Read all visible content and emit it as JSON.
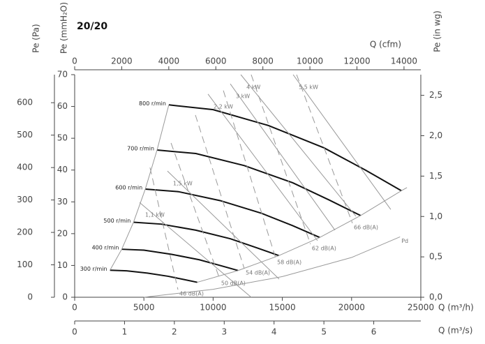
{
  "chart_data": {
    "type": "line",
    "title": "20/20",
    "x_label": "Q (m³/h)",
    "y_label": "Pe (mmH₂O)",
    "xlim": [
      0,
      25000
    ],
    "xticks": [
      0,
      5000,
      10000,
      15000,
      20000,
      25000
    ],
    "ylim": [
      0,
      70
    ],
    "yticks": [
      0,
      10,
      20,
      30,
      40,
      50,
      60,
      70
    ],
    "x2_label": "Q (cfm)",
    "x2lim": [
      0,
      14714
    ],
    "x2ticks": [
      0,
      2000,
      4000,
      6000,
      8000,
      10000,
      12000,
      14000
    ],
    "x3_label": "Q (m³/s)",
    "x3lim": [
      0,
      6.944
    ],
    "x3ticks": [
      0,
      1,
      2,
      3,
      4,
      5,
      6
    ],
    "y2_label": "Pe (Pa)",
    "y2lim": [
      0,
      686.5
    ],
    "y2ticks": [
      0,
      100,
      200,
      300,
      400,
      500,
      600
    ],
    "y3_label": "Pe (in wg)",
    "y3lim": [
      0,
      2.756
    ],
    "y3ticks": [
      {
        "value": 0,
        "label": "0,0"
      },
      {
        "value": 0.5,
        "label": "0,5"
      },
      {
        "value": 1,
        "label": "1,0"
      },
      {
        "value": 1.5,
        "label": "1,5"
      },
      {
        "value": 2,
        "label": "2,0"
      },
      {
        "value": 2.5,
        "label": "2,5"
      }
    ],
    "series": [
      {
        "name": "800 r/min",
        "style": "speed",
        "color": "#111111",
        "x": [
          6800,
          10000,
          14000,
          18000,
          21000,
          23600
        ],
        "values": [
          60.5,
          59,
          54,
          47,
          40,
          33.5
        ]
      },
      {
        "name": "700 r/min",
        "style": "speed",
        "color": "#111111",
        "x": [
          5950,
          8750,
          12250,
          15750,
          18375,
          20650
        ],
        "values": [
          46.3,
          45.2,
          41.4,
          36,
          30.6,
          25.7
        ]
      },
      {
        "name": "600 r/min",
        "style": "speed",
        "color": "#111111",
        "x": [
          5100,
          7500,
          10500,
          13500,
          15750,
          17700
        ],
        "values": [
          34,
          33.2,
          30.4,
          26.4,
          22.5,
          18.8
        ]
      },
      {
        "name": "500 r/min",
        "style": "speed",
        "color": "#111111",
        "x": [
          4250,
          6250,
          8750,
          11250,
          13125,
          14750
        ],
        "values": [
          23.6,
          23,
          21.1,
          18.4,
          15.6,
          13.1
        ]
      },
      {
        "name": "400 r/min",
        "style": "speed",
        "color": "#111111",
        "x": [
          3400,
          5000,
          7000,
          9000,
          10500,
          11800
        ],
        "values": [
          15.1,
          14.8,
          13.5,
          11.8,
          10,
          8.4
        ]
      },
      {
        "name": "300 r/min",
        "style": "speed",
        "color": "#111111",
        "x": [
          2550,
          3750,
          5250,
          6750,
          7875,
          8850
        ],
        "values": [
          8.5,
          8.3,
          7.6,
          6.6,
          5.6,
          4.7
        ]
      },
      {
        "style": "boundary",
        "color": "#999999",
        "x": [
          2550,
          3400,
          4250,
          5100,
          5950,
          6800
        ],
        "values": [
          8.5,
          15.1,
          23.6,
          34,
          46.3,
          60.5
        ]
      },
      {
        "style": "boundary",
        "color": "#999999",
        "x": [
          8850,
          11800,
          14750,
          17700,
          20650,
          23600,
          24000
        ],
        "values": [
          4.7,
          8.4,
          13.1,
          18.8,
          25.7,
          33.5,
          34.5
        ]
      },
      {
        "name": "1,1 kW",
        "style": "power",
        "color": "#999999",
        "x": [
          12750,
          4690
        ],
        "values": [
          0,
          29.8
        ]
      },
      {
        "name": "1,5 kW",
        "style": "power",
        "color": "#999999",
        "x": [
          14770,
          6700
        ],
        "values": [
          5.7,
          39.7
        ]
      },
      {
        "name": "2,2 kW",
        "style": "power",
        "color": "#999999",
        "x": [
          17540,
          9630
        ],
        "values": [
          17.8,
          63.9
        ]
      },
      {
        "name": "3 kW",
        "style": "power",
        "color": "#999999",
        "x": [
          18800,
          11240
        ],
        "values": [
          21.1,
          67.1
        ]
      },
      {
        "name": "4 kW",
        "style": "power",
        "color": "#999999",
        "x": [
          20310,
          12000
        ],
        "values": [
          25.5,
          70
        ]
      },
      {
        "name": "5,5 kW",
        "style": "power",
        "color": "#999999",
        "x": [
          22830,
          15780
        ],
        "values": [
          27.6,
          70
        ]
      },
      {
        "name": "46 dB(A)",
        "style": "noise",
        "color": "#999999",
        "x": [
          5440,
          7460
        ],
        "values": [
          40.8,
          2.4
        ]
      },
      {
        "name": "50 dB(A)",
        "style": "noise",
        "color": "#999999",
        "x": [
          6960,
          10480
        ],
        "values": [
          48.5,
          5.7
        ]
      },
      {
        "name": "54 dB(A)",
        "style": "noise",
        "color": "#999999",
        "x": [
          8720,
          12250
        ],
        "values": [
          57.3,
          9
        ]
      },
      {
        "name": "58 dB(A)",
        "style": "noise",
        "color": "#999999",
        "x": [
          10740,
          14520
        ],
        "values": [
          65,
          12.3
        ]
      },
      {
        "name": "62 dB(A)",
        "style": "noise",
        "color": "#999999",
        "x": [
          12750,
          17030
        ],
        "values": [
          70,
          16.7
        ]
      },
      {
        "name": "66 dB(A)",
        "style": "noise",
        "color": "#999999",
        "x": [
          16030,
          20060
        ],
        "values": [
          70,
          23.3
        ]
      },
      {
        "name": "Pd",
        "style": "pd",
        "color": "#999999",
        "x": [
          5000,
          10000,
          15000,
          20000,
          23500
        ],
        "values": [
          0,
          2.5,
          6.5,
          12.5,
          19
        ]
      }
    ]
  }
}
